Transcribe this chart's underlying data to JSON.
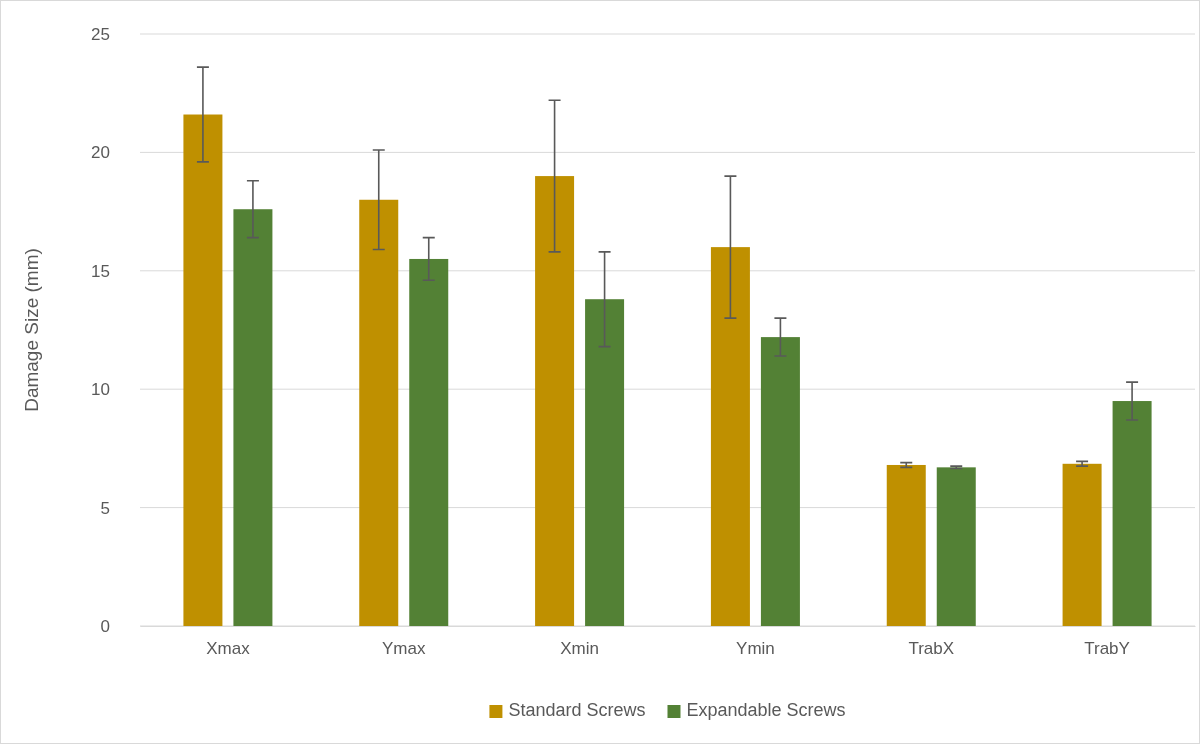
{
  "chart_data": {
    "type": "bar",
    "ylabel": "Damage Size (mm)",
    "categories": [
      "Xmax",
      "Ymax",
      "Xmin",
      "Ymin",
      "TrabX",
      "TrabY"
    ],
    "series": [
      {
        "name": "Standard Screws",
        "color": "#bf9000",
        "values": [
          21.6,
          18.0,
          19.0,
          16.0,
          6.8,
          6.85
        ],
        "errors": [
          2.0,
          2.1,
          3.2,
          3.0,
          0.1,
          0.1
        ]
      },
      {
        "name": "Expandable Screws",
        "color": "#538135",
        "values": [
          17.6,
          15.5,
          13.8,
          12.2,
          6.7,
          9.5
        ],
        "errors": [
          1.2,
          0.9,
          2.0,
          0.8,
          0.05,
          0.8
        ]
      }
    ],
    "ylim": [
      0,
      25
    ],
    "yticks": [
      0,
      5,
      10,
      15,
      20,
      25
    ],
    "grid": "y",
    "legend": "bottom"
  }
}
